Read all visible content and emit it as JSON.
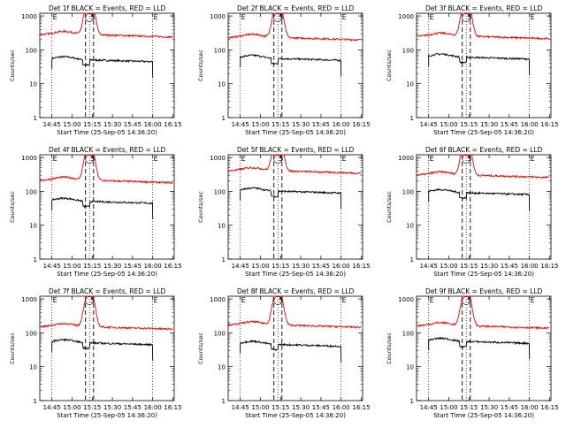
{
  "figure": {
    "xlabel": "Start Time (25-Sep-05 14:36:20)",
    "ylabel": "Counts/sec",
    "legend_text": "BLACK = Events, RED = LLD"
  },
  "axes": {
    "x_tick_labels": [
      "14:45",
      "15:00",
      "15:15",
      "15:30",
      "15:45",
      "16:00",
      "16:15"
    ],
    "y_tick_labels": [
      "1",
      "10",
      "100",
      "1000"
    ],
    "ylim": [
      1,
      1200
    ],
    "xlim_minutes": [
      0,
      100
    ]
  },
  "markers": {
    "dotted_times": [
      "14:45",
      "15:13",
      "16:00"
    ],
    "dotted_letters": [
      "E",
      "S",
      "E"
    ],
    "dashed_times": [
      "15:10",
      "15:16"
    ]
  },
  "colors": {
    "events": "#000000",
    "lld": "#ee0000"
  },
  "chart_data": [
    {
      "type": "line",
      "title": "Det 1f BLACK = Events, RED = LLD",
      "detector": "1f",
      "series": [
        {
          "name": "Events",
          "baseline": 50,
          "range": [
            "14:45",
            "16:00"
          ]
        },
        {
          "name": "LLD",
          "baseline": 280,
          "range": [
            "14:36",
            "16:15"
          ]
        }
      ]
    },
    {
      "type": "line",
      "title": "Det 2f BLACK = Events, RED = LLD",
      "detector": "2f",
      "series": [
        {
          "name": "Events",
          "baseline": 55,
          "range": [
            "14:45",
            "16:00"
          ]
        },
        {
          "name": "LLD",
          "baseline": 230,
          "range": [
            "14:36",
            "16:15"
          ]
        }
      ]
    },
    {
      "type": "line",
      "title": "Det 3f BLACK = Events, RED = LLD",
      "detector": "3f",
      "series": [
        {
          "name": "Events",
          "baseline": 60,
          "range": [
            "14:45",
            "16:00"
          ]
        },
        {
          "name": "LLD",
          "baseline": 250,
          "range": [
            "14:36",
            "16:15"
          ]
        }
      ]
    },
    {
      "type": "line",
      "title": "Det 4f BLACK = Events, RED = LLD",
      "detector": "4f",
      "series": [
        {
          "name": "Events",
          "baseline": 50,
          "range": [
            "14:45",
            "16:00"
          ]
        },
        {
          "name": "LLD",
          "baseline": 210,
          "range": [
            "14:36",
            "16:15"
          ]
        }
      ]
    },
    {
      "type": "line",
      "title": "Det 5f BLACK = Events, RED = LLD",
      "detector": "5f",
      "series": [
        {
          "name": "Events",
          "baseline": 100,
          "range": [
            "14:45",
            "16:00"
          ]
        },
        {
          "name": "LLD",
          "baseline": 400,
          "range": [
            "14:36",
            "16:15"
          ]
        }
      ]
    },
    {
      "type": "line",
      "title": "Det 6f BLACK = Events, RED = LLD",
      "detector": "6f",
      "series": [
        {
          "name": "Events",
          "baseline": 90,
          "range": [
            "14:45",
            "16:00"
          ]
        },
        {
          "name": "LLD",
          "baseline": 300,
          "range": [
            "14:36",
            "16:15"
          ]
        }
      ]
    },
    {
      "type": "line",
      "title": "Det 7f BLACK = Events, RED = LLD",
      "detector": "7f",
      "series": [
        {
          "name": "Events",
          "baseline": 50,
          "range": [
            "14:45",
            "16:00"
          ]
        },
        {
          "name": "LLD",
          "baseline": 150,
          "range": [
            "14:36",
            "16:15"
          ]
        }
      ]
    },
    {
      "type": "line",
      "title": "Det 8f BLACK = Events, RED = LLD",
      "detector": "8f",
      "series": [
        {
          "name": "Events",
          "baseline": 45,
          "range": [
            "14:45",
            "16:00"
          ]
        },
        {
          "name": "LLD",
          "baseline": 170,
          "range": [
            "14:36",
            "16:15"
          ]
        }
      ]
    },
    {
      "type": "line",
      "title": "Det 9f BLACK = Events, RED = LLD",
      "detector": "9f",
      "series": [
        {
          "name": "Events",
          "baseline": 55,
          "range": [
            "14:45",
            "16:00"
          ]
        },
        {
          "name": "LLD",
          "baseline": 160,
          "range": [
            "14:36",
            "16:15"
          ]
        }
      ]
    }
  ]
}
